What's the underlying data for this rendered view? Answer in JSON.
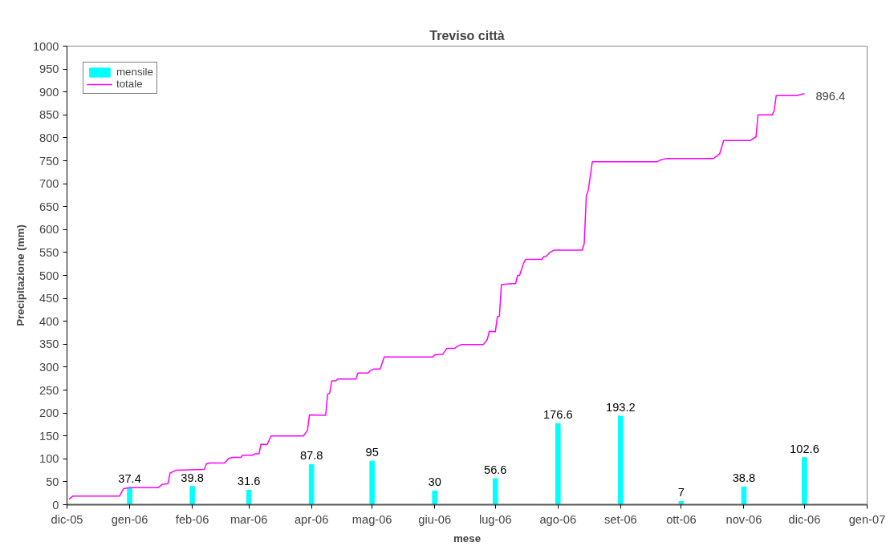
{
  "chart_data": {
    "type": "bar",
    "title": "Treviso città",
    "xlabel": "mese",
    "ylabel": "Precipitazione (mm)",
    "xlim": [
      "2005-12-01",
      "2007-01-01"
    ],
    "xticks": [
      {
        "value": "2005-12-01",
        "label": "dic-05"
      },
      {
        "value": "2006-01-01",
        "label": "gen-06"
      },
      {
        "value": "2006-02-01",
        "label": "feb-06"
      },
      {
        "value": "2006-03-01",
        "label": "mar-06"
      },
      {
        "value": "2006-04-01",
        "label": "apr-06"
      },
      {
        "value": "2006-05-01",
        "label": "mag-06"
      },
      {
        "value": "2006-06-01",
        "label": "giu-06"
      },
      {
        "value": "2006-07-01",
        "label": "lug-06"
      },
      {
        "value": "2006-08-01",
        "label": "ago-06"
      },
      {
        "value": "2006-09-01",
        "label": "set-06"
      },
      {
        "value": "2006-10-01",
        "label": "ott-06"
      },
      {
        "value": "2006-11-01",
        "label": "nov-06"
      },
      {
        "value": "2006-12-01",
        "label": "dic-06"
      },
      {
        "value": "2007-01-01",
        "label": "gen-07"
      }
    ],
    "ylim": [
      0,
      1000
    ],
    "yticks": [
      0,
      50,
      100,
      150,
      200,
      250,
      300,
      350,
      400,
      450,
      500,
      550,
      600,
      650,
      700,
      750,
      800,
      850,
      900,
      950,
      1000
    ],
    "grid": false,
    "legend": "top left",
    "series": [
      {
        "name": "mensile",
        "color": "#00ffff",
        "data_labels": true,
        "x": [
          "2006-01-01",
          "2006-02-01",
          "2006-03-01",
          "2006-04-01",
          "2006-05-01",
          "2006-06-01",
          "2006-07-01",
          "2006-08-01",
          "2006-09-01",
          "2006-10-01",
          "2006-11-01",
          "2006-12-01"
        ],
        "values": [
          37.4,
          39.8,
          31.6,
          87.8,
          95,
          30,
          56.6,
          176.6,
          193.2,
          7,
          38.8,
          102.6
        ]
      },
      {
        "name": "totale",
        "type": "line",
        "color": "#ff00ff",
        "x": [
          "2005-12-02",
          "2005-12-04",
          "2005-12-27",
          "2005-12-29",
          "2006-01-01",
          "2006-01-15",
          "2006-01-17",
          "2006-01-20",
          "2006-01-21",
          "2006-01-24",
          "2006-02-07",
          "2006-02-08",
          "2006-02-10",
          "2006-02-17",
          "2006-02-19",
          "2006-02-21",
          "2006-02-25",
          "2006-02-26",
          "2006-03-03",
          "2006-03-04",
          "2006-03-06",
          "2006-03-07",
          "2006-03-10",
          "2006-03-12",
          "2006-03-28",
          "2006-03-30",
          "2006-03-31",
          "2006-04-08",
          "2006-04-09",
          "2006-04-10",
          "2006-04-11",
          "2006-04-13",
          "2006-04-14",
          "2006-04-23",
          "2006-04-24",
          "2006-04-29",
          "2006-04-30",
          "2006-05-02",
          "2006-05-05",
          "2006-05-07",
          "2006-05-31",
          "2006-06-01",
          "2006-06-03",
          "2006-06-05",
          "2006-06-07",
          "2006-06-11",
          "2006-06-12",
          "2006-06-14",
          "2006-06-25",
          "2006-06-27",
          "2006-06-28",
          "2006-07-01",
          "2006-07-02",
          "2006-07-03",
          "2006-07-04",
          "2006-07-09",
          "2006-07-11",
          "2006-07-12",
          "2006-07-13",
          "2006-07-15",
          "2006-07-16",
          "2006-07-24",
          "2006-07-25",
          "2006-07-26",
          "2006-07-28",
          "2006-07-30",
          "2006-08-13",
          "2006-08-14",
          "2006-08-15",
          "2006-08-16",
          "2006-08-18",
          "2006-09-19",
          "2006-09-21",
          "2006-09-24",
          "2006-10-17",
          "2006-10-20",
          "2006-10-22",
          "2006-11-04",
          "2006-11-07",
          "2006-11-08",
          "2006-11-15",
          "2006-11-16",
          "2006-11-17",
          "2006-11-27",
          "2006-12-01"
        ],
        "values": [
          12,
          19,
          19,
          35,
          37,
          37,
          44,
          46,
          69,
          75,
          77,
          89,
          91,
          91,
          101,
          103,
          103,
          108,
          108,
          111,
          111,
          132,
          131,
          150,
          150,
          162,
          196,
          195,
          241,
          243,
          270,
          270,
          274,
          274,
          287,
          287,
          292,
          296,
          296,
          322,
          322,
          327,
          328,
          328,
          341,
          341,
          345,
          349,
          349,
          360,
          378,
          377,
          410,
          411,
          480,
          482,
          482,
          500,
          500,
          527,
          535,
          535,
          541,
          541,
          550,
          555,
          555,
          570,
          673,
          686,
          748,
          748,
          752,
          755,
          755,
          765,
          794,
          794,
          802,
          850,
          850,
          859,
          892,
          892,
          896.4
        ]
      }
    ],
    "annotations": [
      {
        "text": "896.4",
        "x": "2006-12-01",
        "y": 896.4
      }
    ]
  }
}
